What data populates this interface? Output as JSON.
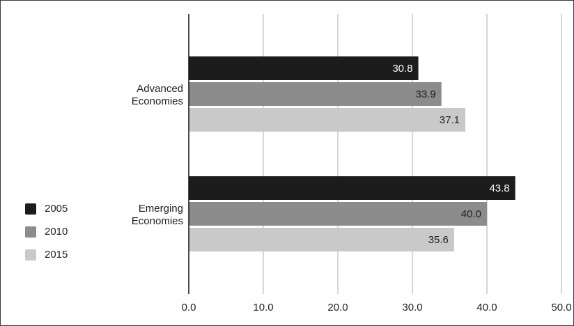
{
  "chart_data": {
    "type": "bar",
    "orientation": "horizontal",
    "categories": [
      "Advanced\nEconomies",
      "Emerging\nEconomies"
    ],
    "series": [
      {
        "name": "2005",
        "color": "#1c1c1c",
        "values": [
          30.8,
          43.8
        ]
      },
      {
        "name": "2010",
        "color": "#8c8c8c",
        "values": [
          33.9,
          40.0
        ]
      },
      {
        "name": "2015",
        "color": "#c9c9c9",
        "values": [
          37.1,
          35.6
        ]
      }
    ],
    "xlim": [
      0,
      50
    ],
    "xticks": [
      "0.0",
      "10.0",
      "20.0",
      "30.0",
      "40.0",
      "50.0"
    ],
    "value_labels": [
      [
        "30.8",
        "43.8"
      ],
      [
        "33.9",
        "40.0"
      ],
      [
        "37.1",
        "35.6"
      ]
    ],
    "grid": "vertical",
    "legend_position": "left"
  }
}
